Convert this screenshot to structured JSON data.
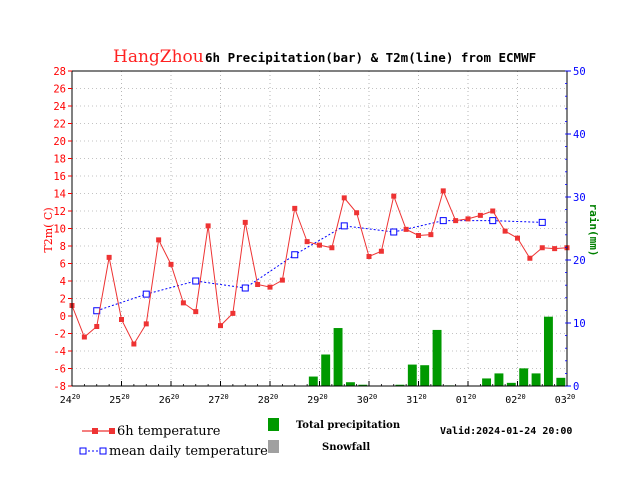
{
  "title": {
    "city": "HangZhou",
    "rest": "6h Precipitation(bar) & T2m(line) from ECMWF"
  },
  "legend": {
    "temp6h": "6h temperature",
    "meanDaily": "mean daily temperature",
    "totalPrecip": "Total precipitation",
    "snowfall": "Snowfall"
  },
  "valid": "Valid:2024-01-24 20:00",
  "colors": {
    "temp": "#ee3333",
    "mean": "#0000ff",
    "precip": "#009900",
    "snow": "#a0a0a0",
    "leftAxis": "#ff0000",
    "rightAxis": "#0000ff",
    "rightLabel": "#008000"
  },
  "chart_data": {
    "type": "bar+line",
    "title": "HangZhou 6h Precipitation(bar) & T2m(line) from ECMWF",
    "ylabel_left": "T2m( C)",
    "ylabel_right": "rain(mm)",
    "ylim_left": [
      -8,
      28
    ],
    "ylim_right": [
      0,
      50
    ],
    "grid": true,
    "x_ticks": [
      {
        "day": "24",
        "hour": "20",
        "x": 0
      },
      {
        "day": "25",
        "hour": "20",
        "x": 24
      },
      {
        "day": "26",
        "hour": "20",
        "x": 48
      },
      {
        "day": "27",
        "hour": "20",
        "x": 72
      },
      {
        "day": "28",
        "hour": "20",
        "x": 96
      },
      {
        "day": "29",
        "hour": "20",
        "x": 120
      },
      {
        "day": "30",
        "hour": "20",
        "x": 144
      },
      {
        "day": "31",
        "hour": "20",
        "x": 168
      },
      {
        "day": "01",
        "hour": "20",
        "x": 192
      },
      {
        "day": "02",
        "hour": "20",
        "x": 216
      },
      {
        "day": "03",
        "hour": "20",
        "x": 240
      }
    ],
    "series": [
      {
        "name": "6h temperature",
        "axis": "left",
        "x": [
          0,
          6,
          12,
          18,
          24,
          30,
          36,
          42,
          48,
          54,
          60,
          66,
          72,
          78,
          84,
          90,
          96,
          102,
          108,
          114,
          120,
          126,
          132,
          138,
          144,
          150,
          156,
          162,
          168,
          174,
          180,
          186,
          192,
          198,
          204,
          210,
          216,
          222,
          228,
          234,
          240
        ],
        "values": [
          1.2,
          -2.4,
          -1.2,
          6.7,
          -0.4,
          -3.2,
          -0.9,
          8.7,
          5.9,
          1.5,
          0.5,
          10.3,
          -1.1,
          0.3,
          10.7,
          3.6,
          3.3,
          4.1,
          12.3,
          8.5,
          8.1,
          7.8,
          13.5,
          11.8,
          6.8,
          7.4,
          13.7,
          9.9,
          9.2,
          9.3,
          14.3,
          10.9,
          11.1,
          11.5,
          12.0,
          9.7,
          8.9,
          6.6,
          7.8,
          7.7,
          7.8
        ]
      },
      {
        "name": "mean daily temperature",
        "axis": "left",
        "x": [
          12,
          36,
          60,
          84,
          108,
          132,
          156,
          180,
          204,
          228
        ],
        "values": [
          0.6,
          2.5,
          4.0,
          3.2,
          7.0,
          10.3,
          9.6,
          10.9,
          10.9,
          10.7
        ]
      },
      {
        "name": "Total precipitation",
        "axis": "right",
        "type": "bar",
        "x": [
          120,
          126,
          132,
          138,
          144,
          162,
          168,
          174,
          180,
          186,
          204,
          210,
          216,
          222,
          228,
          234,
          240
        ],
        "values": [
          1.5,
          5.0,
          9.2,
          0.6,
          0.2,
          0.2,
          3.4,
          3.3,
          8.9,
          0.1,
          1.2,
          2.0,
          0.5,
          2.8,
          2.0,
          11.0,
          1.3
        ]
      }
    ]
  }
}
